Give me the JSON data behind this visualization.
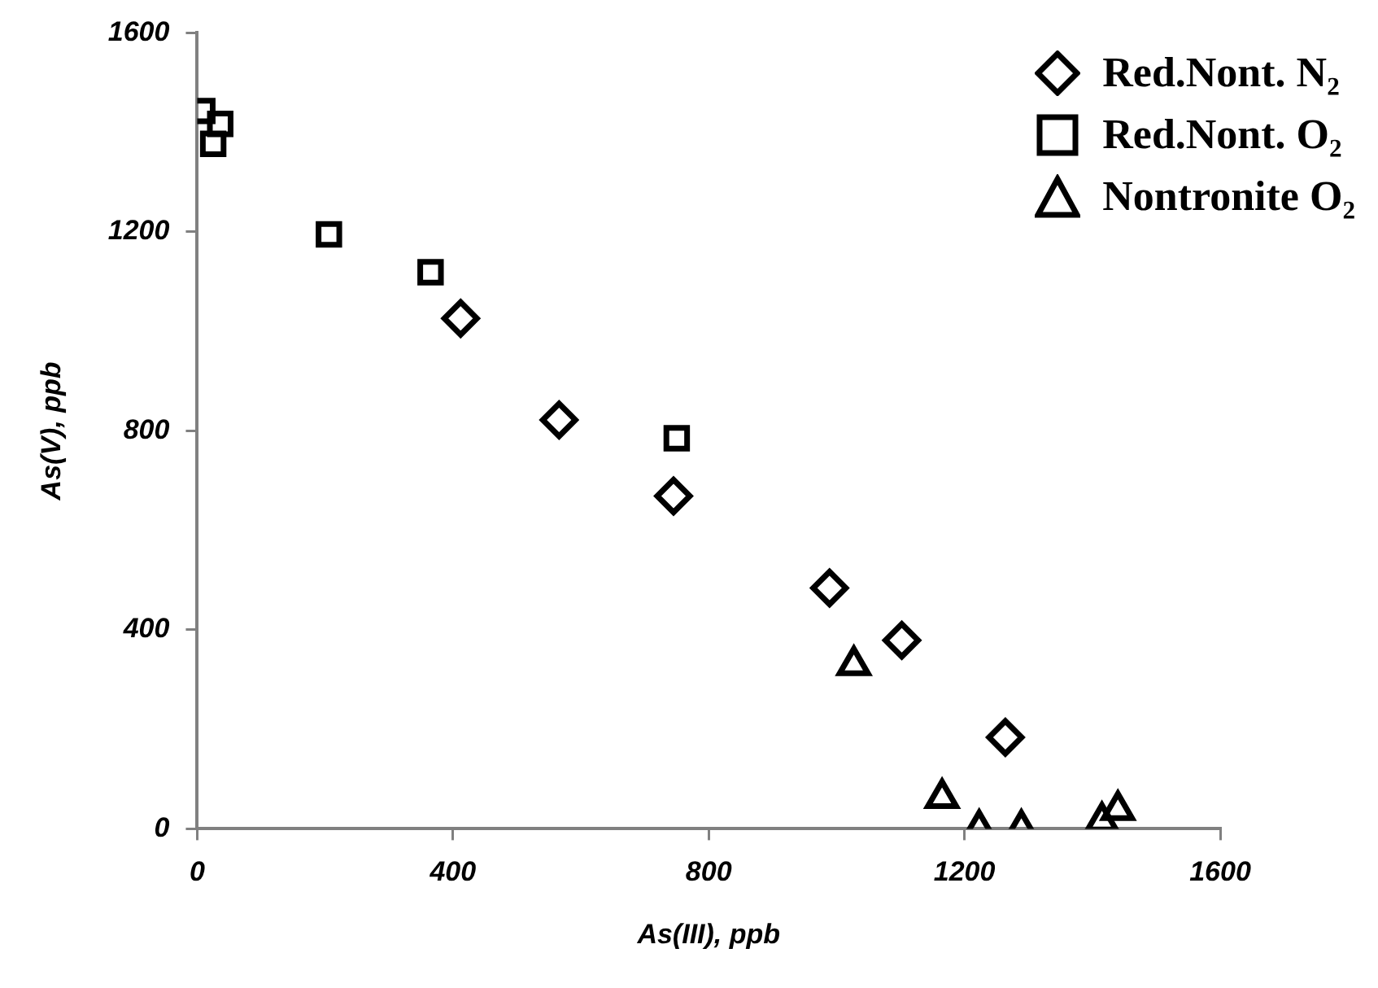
{
  "chart_data": {
    "type": "scatter",
    "xlabel": "As(III), ppb",
    "ylabel": "As(V), ppb",
    "xlim": [
      0,
      1600
    ],
    "xticks": [
      0,
      400,
      800,
      1200,
      1600
    ],
    "ylim": [
      0,
      1600
    ],
    "yticks": [
      0,
      400,
      800,
      1200,
      1600
    ],
    "grid": false,
    "legend": "top right",
    "series": [
      {
        "name": "Red.Nont. N₂",
        "color": "#000000",
        "marker": "diamond",
        "x": [
          412,
          566,
          745,
          989,
          1102,
          1264
        ],
        "values": [
          1026,
          822,
          669,
          484,
          379,
          184
        ]
      },
      {
        "name": "Red.Nont. O₂",
        "color": "#000000",
        "marker": "square",
        "x": [
          8,
          36,
          25,
          206,
          365,
          750
        ],
        "values": [
          1443,
          1417,
          1377,
          1195,
          1119,
          785
        ]
      },
      {
        "name": "Nontronite O₂",
        "color": "#000000",
        "marker": "triangle",
        "x": [
          1027,
          1165,
          1223,
          1289,
          1415,
          1440
        ],
        "values": [
          329,
          62,
          0,
          0,
          15,
          38
        ]
      }
    ]
  }
}
